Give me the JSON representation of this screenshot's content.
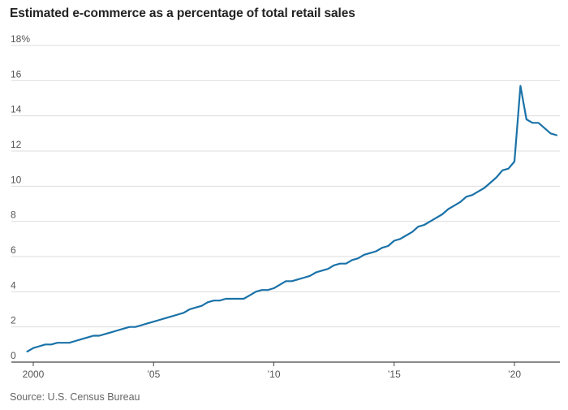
{
  "chart_data": {
    "type": "line",
    "title": "Estimated e-commerce as a percentage of total retail sales",
    "source": "Source: U.S. Census Bureau",
    "xlabel": "",
    "ylabel": "",
    "ylim": [
      0,
      18
    ],
    "xlim": [
      1999.5,
      2022
    ],
    "grid": "horizontal",
    "legend": "none",
    "y_ticks": [
      {
        "value": 0,
        "label": "0"
      },
      {
        "value": 2,
        "label": "2"
      },
      {
        "value": 4,
        "label": "4"
      },
      {
        "value": 6,
        "label": "6"
      },
      {
        "value": 8,
        "label": "8"
      },
      {
        "value": 10,
        "label": "10"
      },
      {
        "value": 12,
        "label": "12"
      },
      {
        "value": 14,
        "label": "14"
      },
      {
        "value": 16,
        "label": "16"
      },
      {
        "value": 18,
        "label": "18%"
      }
    ],
    "x_ticks": [
      {
        "value": 2000,
        "label": "2000"
      },
      {
        "value": 2005,
        "label": "’05"
      },
      {
        "value": 2010,
        "label": "’10"
      },
      {
        "value": 2015,
        "label": "’15"
      },
      {
        "value": 2020,
        "label": "’20"
      }
    ],
    "line_color": "#1a72a8",
    "grid_color": "#dddddd",
    "axis_color": "#444444",
    "series": [
      {
        "x": [
          1999.75,
          2000.0,
          2000.25,
          2000.5,
          2000.75,
          2001.0,
          2001.25,
          2001.5,
          2001.75,
          2002.0,
          2002.25,
          2002.5,
          2002.75,
          2003.0,
          2003.25,
          2003.5,
          2003.75,
          2004.0,
          2004.25,
          2004.5,
          2004.75,
          2005.0,
          2005.25,
          2005.5,
          2005.75,
          2006.0,
          2006.25,
          2006.5,
          2006.75,
          2007.0,
          2007.25,
          2007.5,
          2007.75,
          2008.0,
          2008.25,
          2008.5,
          2008.75,
          2009.0,
          2009.25,
          2009.5,
          2009.75,
          2010.0,
          2010.25,
          2010.5,
          2010.75,
          2011.0,
          2011.25,
          2011.5,
          2011.75,
          2012.0,
          2012.25,
          2012.5,
          2012.75,
          2013.0,
          2013.25,
          2013.5,
          2013.75,
          2014.0,
          2014.25,
          2014.5,
          2014.75,
          2015.0,
          2015.25,
          2015.5,
          2015.75,
          2016.0,
          2016.25,
          2016.5,
          2016.75,
          2017.0,
          2017.25,
          2017.5,
          2017.75,
          2018.0,
          2018.25,
          2018.5,
          2018.75,
          2019.0,
          2019.25,
          2019.5,
          2019.75,
          2020.0,
          2020.25,
          2020.5,
          2020.75,
          2021.0,
          2021.25,
          2021.5,
          2021.75
        ],
        "values": [
          0.6,
          0.8,
          0.9,
          1.0,
          1.0,
          1.1,
          1.1,
          1.1,
          1.2,
          1.3,
          1.4,
          1.5,
          1.5,
          1.6,
          1.7,
          1.8,
          1.9,
          2.0,
          2.0,
          2.1,
          2.2,
          2.3,
          2.4,
          2.5,
          2.6,
          2.7,
          2.8,
          3.0,
          3.1,
          3.2,
          3.4,
          3.5,
          3.5,
          3.6,
          3.6,
          3.6,
          3.6,
          3.8,
          4.0,
          4.1,
          4.1,
          4.2,
          4.4,
          4.6,
          4.6,
          4.7,
          4.8,
          4.9,
          5.1,
          5.2,
          5.3,
          5.5,
          5.6,
          5.6,
          5.8,
          5.9,
          6.1,
          6.2,
          6.3,
          6.5,
          6.6,
          6.9,
          7.0,
          7.2,
          7.4,
          7.7,
          7.8,
          8.0,
          8.2,
          8.4,
          8.7,
          8.9,
          9.1,
          9.4,
          9.5,
          9.7,
          9.9,
          10.2,
          10.5,
          10.9,
          11.0,
          11.4,
          15.7,
          13.8,
          13.6,
          13.6,
          13.3,
          13.0,
          12.9
        ]
      }
    ]
  }
}
